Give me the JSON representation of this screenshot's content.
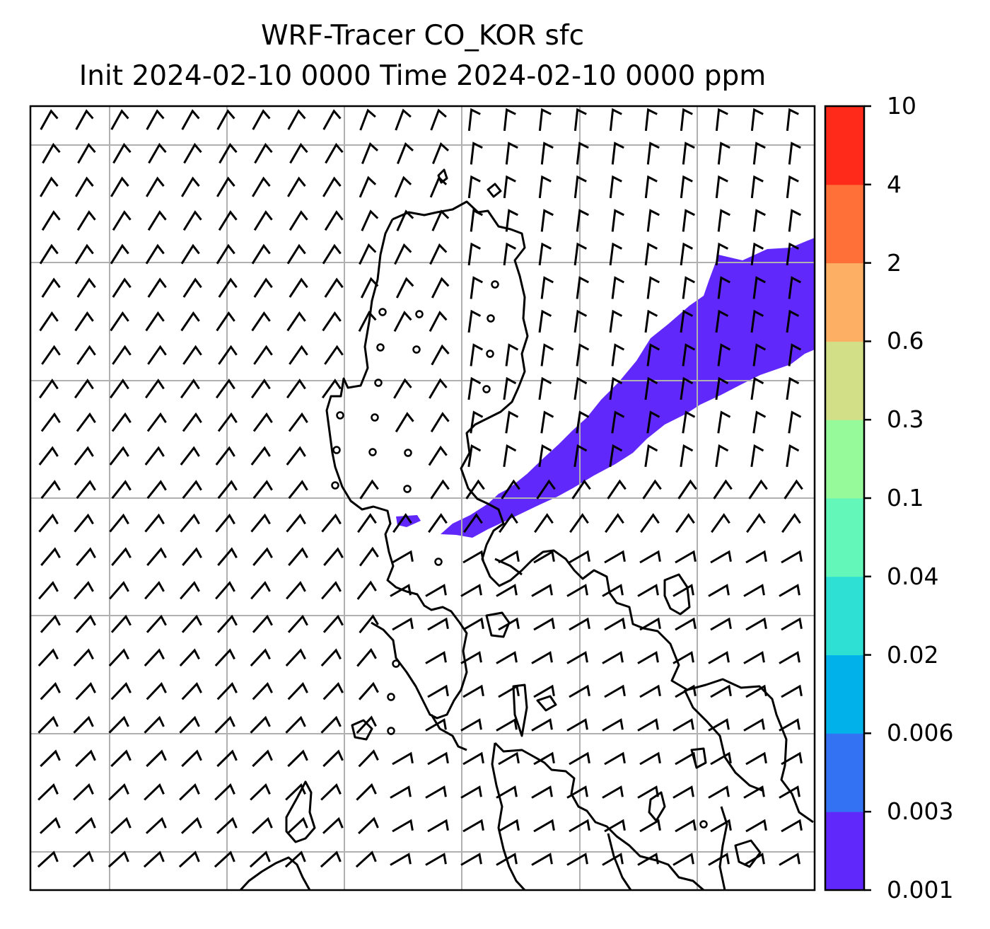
{
  "title": {
    "line1": "WRF-Tracer CO_KOR sfc",
    "line2": "Init 2024-02-10 0000 Time 2024-02-10 0000 ppm"
  },
  "map": {
    "variable": "CO_KOR tracer concentration (surface)",
    "units": "ppm",
    "features": [
      "coastlines",
      "graticule-grid",
      "wind-barbs",
      "tracer-plume"
    ],
    "plume_color": "#6128fb",
    "wind_barb_color": "#000000",
    "grid_color": "#b0b0b0"
  },
  "colorbar": {
    "levels": [
      "0.001",
      "0.003",
      "0.006",
      "0.02",
      "0.04",
      "0.1",
      "0.3",
      "0.6",
      "2",
      "4",
      "10"
    ],
    "colors": [
      "#6128fb",
      "#3472f4",
      "#00b1ea",
      "#2ee0d3",
      "#64f7ba",
      "#96f99a",
      "#d2df86",
      "#fdb064",
      "#ff7038",
      "#ff2a1a"
    ]
  }
}
